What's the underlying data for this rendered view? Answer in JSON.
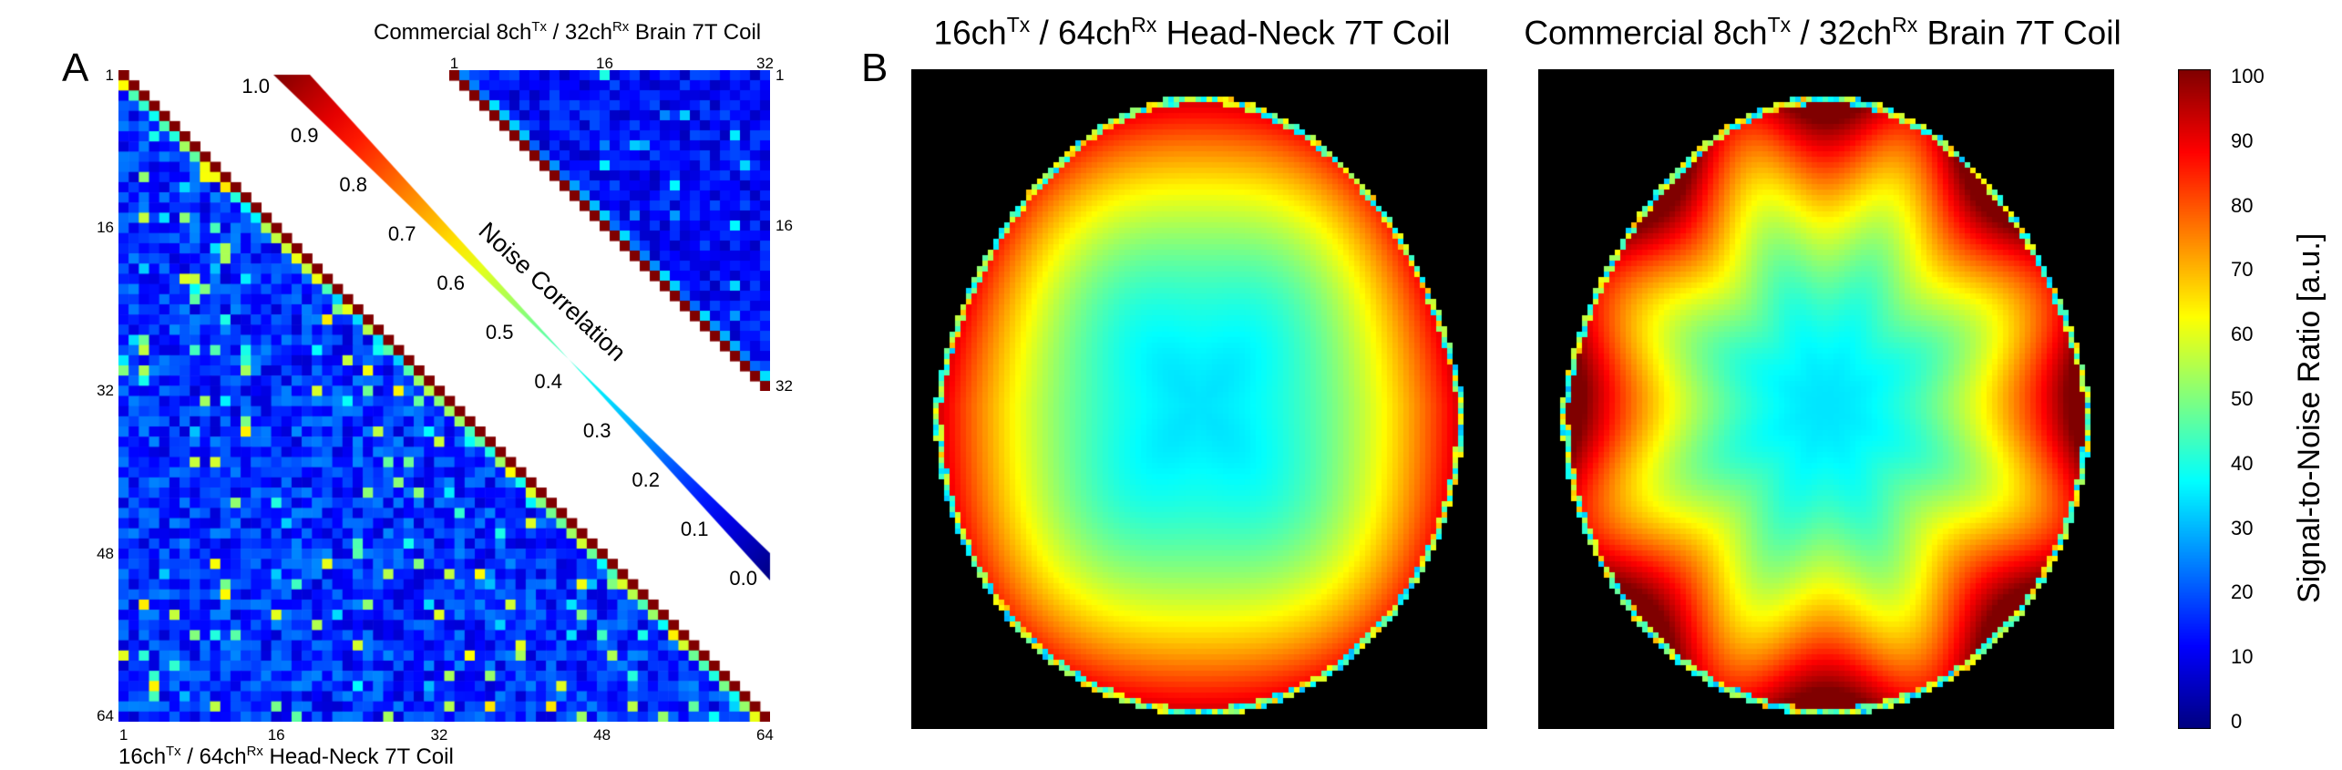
{
  "panel_a": {
    "letter": "A",
    "x_title_main": "16ch",
    "x_title_sup1": "Tx",
    "x_title_mid": " / 64ch",
    "x_title_sup2": "Rx",
    "x_title_end": " Head-Neck 7T Coil",
    "inset_title_main": "Commercial 8ch",
    "inset_title_sup1": "Tx",
    "inset_title_mid": " / 32ch",
    "inset_title_sup2": "Rx",
    "inset_title_end": " Brain 7T Coil",
    "colorbar_label": "Noise Correlation"
  },
  "panel_b": {
    "letter": "B",
    "left_title_main": "16ch",
    "left_title_sup1": "Tx",
    "left_title_mid": " / 64ch",
    "left_title_sup2": "Rx",
    "left_title_end": " Head-Neck 7T Coil",
    "right_title_main": "Commercial 8ch",
    "right_title_sup1": "Tx",
    "right_title_mid": " / 32ch",
    "right_title_sup2": "Rx",
    "right_title_end": " Brain 7T Coil",
    "colorbar_label": "Signal-to-Noise Ratio [a.u.]"
  },
  "chart_data": [
    {
      "type": "heatmap",
      "title": "16chTx / 64chRx Head-Neck 7T Coil",
      "matrix_size": 64,
      "axis_ticks": [
        "1",
        "16",
        "32",
        "48",
        "64"
      ],
      "lower_triangular": true,
      "diagonal_value": 1.0,
      "typical_offdiag_range": [
        0.05,
        0.3
      ],
      "peak_offdiag": 0.65,
      "colormap": "jet",
      "clim": [
        0.0,
        1.0
      ]
    },
    {
      "type": "heatmap",
      "title": "Commercial 8chTx / 32chRx Brain 7T Coil",
      "matrix_size": 32,
      "axis_ticks": [
        "1",
        "16",
        "32"
      ],
      "upper_triangular": true,
      "diagonal_value": 1.0,
      "typical_offdiag_range": [
        0.05,
        0.2
      ],
      "colormap": "jet",
      "clim": [
        0.0,
        1.0
      ]
    },
    {
      "type": "heatmap",
      "title": "Noise Correlation colorbar",
      "ticks": [
        "1.0",
        "0.9",
        "0.8",
        "0.7",
        "0.6",
        "0.5",
        "0.4",
        "0.3",
        "0.2",
        "0.1",
        "0.0"
      ],
      "colormap": "jet",
      "range": [
        0.0,
        1.0
      ]
    },
    {
      "type": "heatmap",
      "title": "16chTx / 64chRx Head-Neck 7T Coil",
      "quantity": "Signal-to-Noise Ratio [a.u.]",
      "center_value": 35,
      "periphery_value": 90,
      "colormap": "jet",
      "clim": [
        0,
        100
      ]
    },
    {
      "type": "heatmap",
      "title": "Commercial 8chTx / 32chRx Brain 7T Coil",
      "quantity": "Signal-to-Noise Ratio [a.u.]",
      "center_value": 35,
      "periphery_value": 100,
      "colormap": "jet",
      "clim": [
        0,
        100
      ]
    },
    {
      "type": "heatmap",
      "title": "SNR colorbar",
      "ticks": [
        "100",
        "90",
        "80",
        "70",
        "60",
        "50",
        "40",
        "30",
        "20",
        "10",
        "0"
      ],
      "colormap": "jet",
      "range": [
        0,
        100
      ]
    }
  ]
}
